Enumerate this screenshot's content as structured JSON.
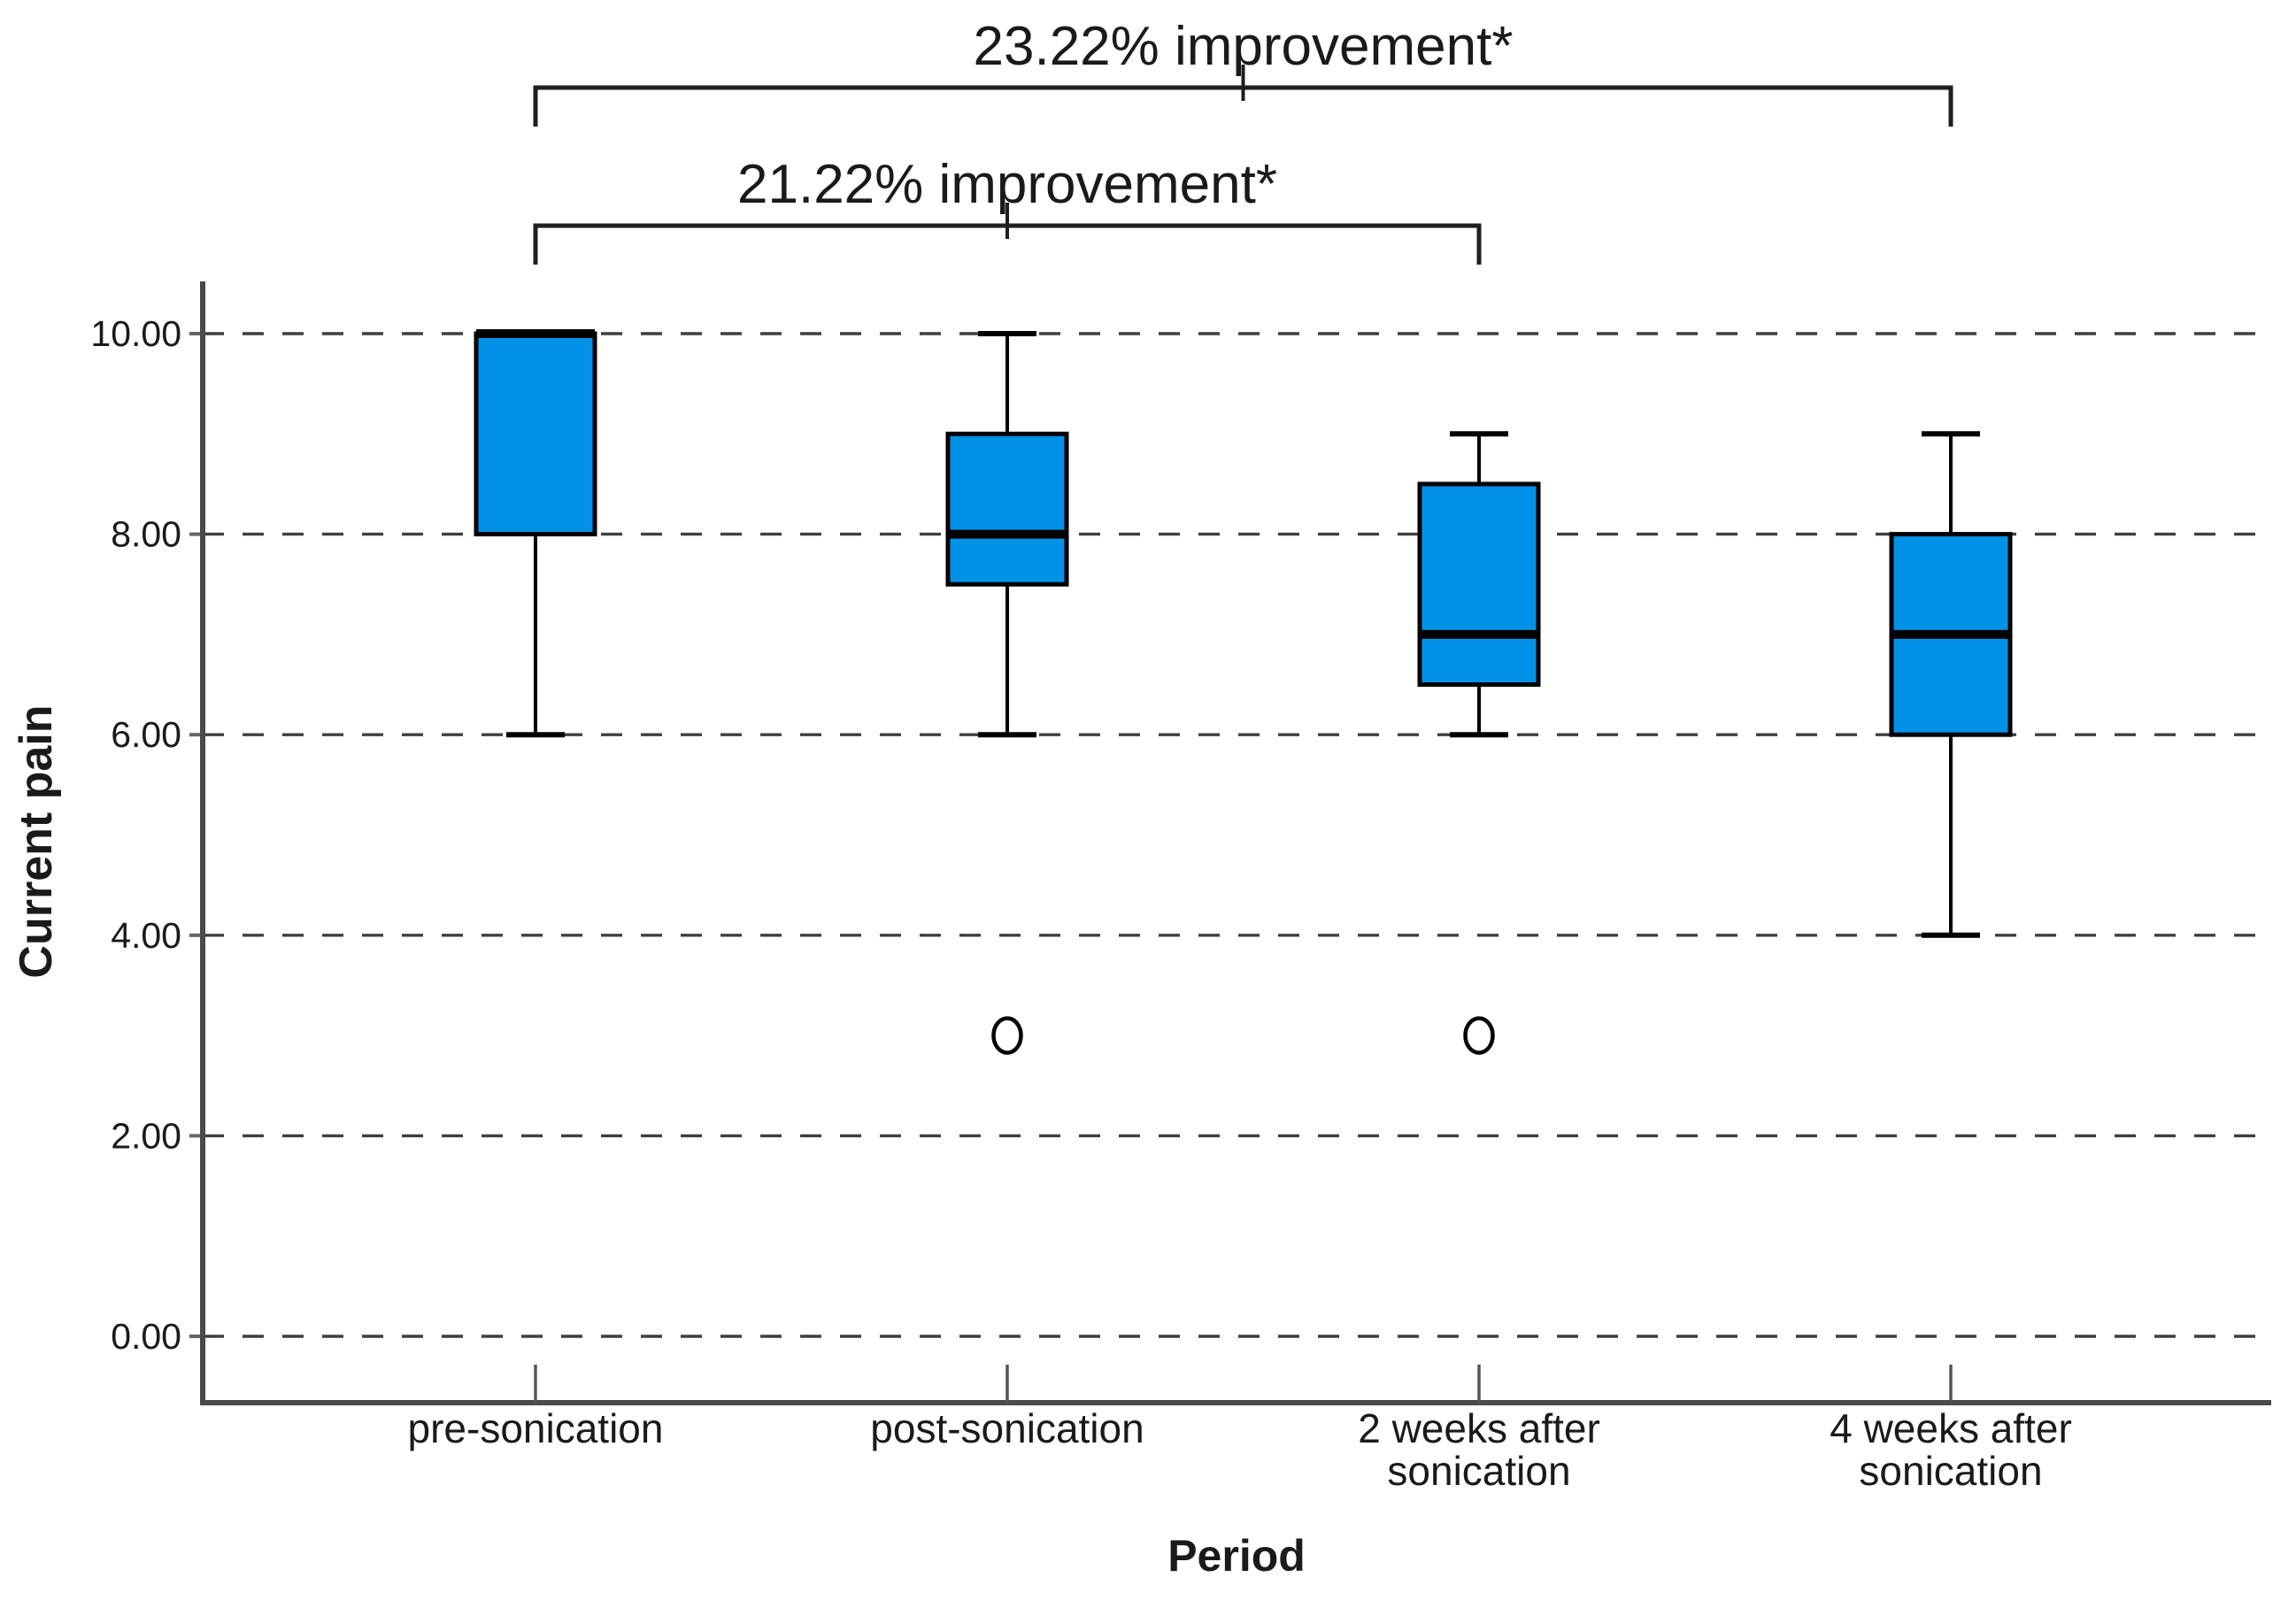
{
  "figure": {
    "background": "#ffffff",
    "text_color": "#1a1a1a"
  },
  "chart_data": {
    "type": "boxplot",
    "title": "",
    "xlabel": "Period",
    "ylabel": "Current pain",
    "ylim": [
      -0.66,
      10.5
    ],
    "yticks": [
      0,
      2,
      4,
      6,
      8,
      10
    ],
    "ytick_labels": [
      "0.00",
      "2.00",
      "4.00",
      "6.00",
      "8.00",
      "10.00"
    ],
    "grid": "horizontal-dashed",
    "legend": "none",
    "box_fill": "#0092e6",
    "box_stroke": "#000000",
    "categories": [
      "pre-sonication",
      "post-sonication",
      "2 weeks after sonication",
      "4 weeks after sonication"
    ],
    "series": [
      {
        "name": "pre-sonication",
        "label_lines": [
          "pre-sonication"
        ],
        "whisker_low": 6,
        "q1": 8,
        "median": 10,
        "q3": 10,
        "whisker_high": 10,
        "outliers": []
      },
      {
        "name": "post-sonication",
        "label_lines": [
          "post-sonication"
        ],
        "whisker_low": 6,
        "q1": 7.5,
        "median": 8,
        "q3": 9,
        "whisker_high": 10,
        "outliers": [
          3
        ]
      },
      {
        "name": "2 weeks after sonication",
        "label_lines": [
          "2 weeks after",
          "sonication"
        ],
        "whisker_low": 6,
        "q1": 6.5,
        "median": 7,
        "q3": 8.5,
        "whisker_high": 9,
        "outliers": [
          3
        ]
      },
      {
        "name": "4 weeks after sonication",
        "label_lines": [
          "4 weeks after",
          "sonication"
        ],
        "whisker_low": 4,
        "q1": 6,
        "median": 7,
        "q3": 8,
        "whisker_high": 9,
        "outliers": []
      }
    ],
    "annotations": [
      {
        "label": "23.22% improvement*",
        "from_category": 0,
        "to_category": 3
      },
      {
        "label": "21.22% improvement*",
        "from_category": 0,
        "to_category": 2
      }
    ]
  }
}
